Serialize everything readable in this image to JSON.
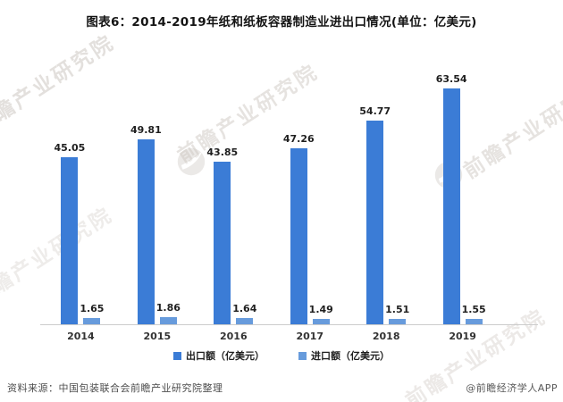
{
  "title": "图表6：2014-2019年纸和纸板容器制造业进出口情况(单位：亿美元)",
  "chart_data": {
    "type": "bar",
    "categories": [
      "2014",
      "2015",
      "2016",
      "2017",
      "2018",
      "2019"
    ],
    "series": [
      {
        "name": "出口额（亿美元）",
        "color": "#3b7cd6",
        "values": [
          45.05,
          49.81,
          43.85,
          47.26,
          54.77,
          63.54
        ]
      },
      {
        "name": "进口额（亿美元）",
        "color": "#679bdc",
        "values": [
          1.65,
          1.86,
          1.64,
          1.49,
          1.51,
          1.55
        ]
      }
    ],
    "ylim": [
      0,
      65
    ],
    "grid": false,
    "value_labels": true,
    "legend_position": "bottom",
    "xlabel": "",
    "ylabel": ""
  },
  "footer": {
    "source": "资料来源：中国包装联合会前瞻产业研究院整理",
    "credit": "@前瞻经济学人APP"
  },
  "watermark": {
    "text": "前瞻产业研究院"
  }
}
